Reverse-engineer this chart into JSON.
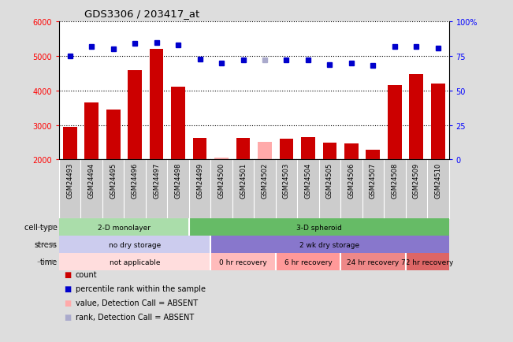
{
  "title": "GDS3306 / 203417_at",
  "samples": [
    "GSM24493",
    "GSM24494",
    "GSM24495",
    "GSM24496",
    "GSM24497",
    "GSM24498",
    "GSM24499",
    "GSM24500",
    "GSM24501",
    "GSM24502",
    "GSM24503",
    "GSM24504",
    "GSM24505",
    "GSM24506",
    "GSM24507",
    "GSM24508",
    "GSM24509",
    "GSM24510"
  ],
  "count_values": [
    2950,
    3650,
    3450,
    4600,
    5200,
    4100,
    2620,
    2050,
    2620,
    2520,
    2590,
    2650,
    2480,
    2470,
    2280,
    4150,
    4480,
    4200
  ],
  "count_absent": [
    false,
    false,
    false,
    false,
    false,
    false,
    false,
    true,
    false,
    true,
    false,
    false,
    false,
    false,
    false,
    false,
    false,
    false
  ],
  "percentile_values": [
    75,
    82,
    80,
    84,
    85,
    83,
    73,
    70,
    72,
    72,
    72,
    72,
    69,
    70,
    68,
    82,
    82,
    81
  ],
  "percentile_absent": [
    false,
    false,
    false,
    false,
    false,
    false,
    false,
    false,
    false,
    true,
    false,
    false,
    false,
    false,
    false,
    false,
    false,
    false
  ],
  "ylim_left": [
    2000,
    6000
  ],
  "ylim_right": [
    0,
    100
  ],
  "yticks_left": [
    2000,
    3000,
    4000,
    5000,
    6000
  ],
  "yticks_right": [
    0,
    25,
    50,
    75,
    100
  ],
  "bar_color_present": "#cc0000",
  "bar_color_absent": "#ffaaaa",
  "dot_color_present": "#0000cc",
  "dot_color_absent": "#aaaacc",
  "cell_type_rows": [
    {
      "label": "2-D monolayer",
      "start": 0,
      "end": 6,
      "color": "#aaddaa"
    },
    {
      "label": "3-D spheroid",
      "start": 6,
      "end": 18,
      "color": "#66bb66"
    }
  ],
  "stress_rows": [
    {
      "label": "no dry storage",
      "start": 0,
      "end": 7,
      "color": "#ccccee"
    },
    {
      "label": "2 wk dry storage",
      "start": 7,
      "end": 18,
      "color": "#8877cc"
    }
  ],
  "time_rows": [
    {
      "label": "not applicable",
      "start": 0,
      "end": 7,
      "color": "#ffdddd"
    },
    {
      "label": "0 hr recovery",
      "start": 7,
      "end": 10,
      "color": "#ffbbbb"
    },
    {
      "label": "6 hr recovery",
      "start": 10,
      "end": 13,
      "color": "#ff9999"
    },
    {
      "label": "24 hr recovery",
      "start": 13,
      "end": 16,
      "color": "#ee8888"
    },
    {
      "label": "72 hr recovery",
      "start": 16,
      "end": 18,
      "color": "#dd6666"
    }
  ],
  "legend_items": [
    {
      "color": "#cc0000",
      "label": "count",
      "marker": "s"
    },
    {
      "color": "#0000cc",
      "label": "percentile rank within the sample",
      "marker": "s"
    },
    {
      "color": "#ffaaaa",
      "label": "value, Detection Call = ABSENT",
      "marker": "s"
    },
    {
      "color": "#aaaacc",
      "label": "rank, Detection Call = ABSENT",
      "marker": "s"
    }
  ],
  "fig_bg_color": "#dddddd",
  "plot_bg_color": "#ffffff",
  "xtick_bg_color": "#cccccc"
}
